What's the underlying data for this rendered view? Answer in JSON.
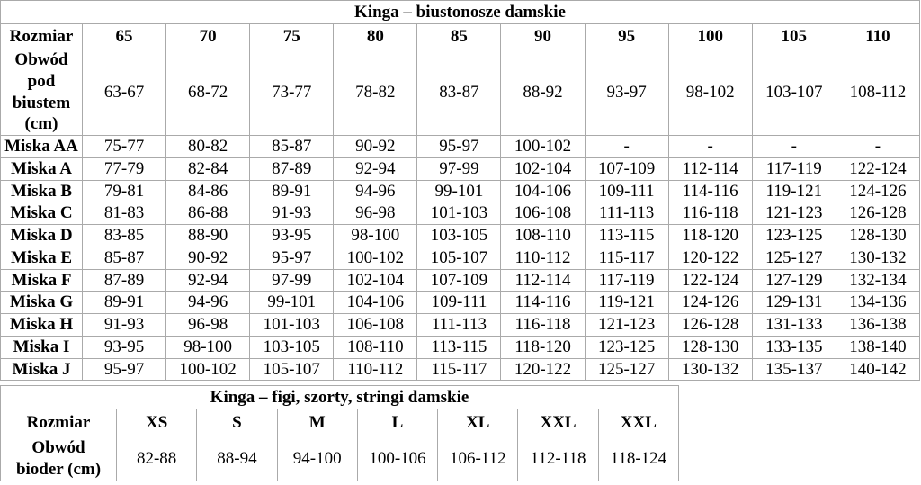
{
  "page": {
    "background_color": "#ffffff",
    "text_color": "#000000",
    "border_color": "#aaaaaa"
  },
  "tables": [
    {
      "id": "bras",
      "title": "Kinga – biustonosze damskie",
      "corner_label": "Rozmiar",
      "columns": [
        "65",
        "70",
        "75",
        "80",
        "85",
        "90",
        "95",
        "100",
        "105",
        "110"
      ],
      "rows": [
        {
          "label": "Obwód\npod\nbiustem\n(cm)",
          "type": "measure",
          "values": [
            "63-67",
            "68-72",
            "73-77",
            "78-82",
            "83-87",
            "88-92",
            "93-97",
            "98-102",
            "103-107",
            "108-112"
          ]
        },
        {
          "label": "Miska AA",
          "type": "data",
          "values": [
            "75-77",
            "80-82",
            "85-87",
            "90-92",
            "95-97",
            "100-102",
            "-",
            "-",
            "-",
            "-"
          ]
        },
        {
          "label": "Miska A",
          "type": "data",
          "values": [
            "77-79",
            "82-84",
            "87-89",
            "92-94",
            "97-99",
            "102-104",
            "107-109",
            "112-114",
            "117-119",
            "122-124"
          ]
        },
        {
          "label": "Miska B",
          "type": "data",
          "values": [
            "79-81",
            "84-86",
            "89-91",
            "94-96",
            "99-101",
            "104-106",
            "109-111",
            "114-116",
            "119-121",
            "124-126"
          ]
        },
        {
          "label": "Miska C",
          "type": "data",
          "values": [
            "81-83",
            "86-88",
            "91-93",
            "96-98",
            "101-103",
            "106-108",
            "111-113",
            "116-118",
            "121-123",
            "126-128"
          ]
        },
        {
          "label": "Miska D",
          "type": "data",
          "values": [
            "83-85",
            "88-90",
            "93-95",
            "98-100",
            "103-105",
            "108-110",
            "113-115",
            "118-120",
            "123-125",
            "128-130"
          ]
        },
        {
          "label": "Miska E",
          "type": "data",
          "values": [
            "85-87",
            "90-92",
            "95-97",
            "100-102",
            "105-107",
            "110-112",
            "115-117",
            "120-122",
            "125-127",
            "130-132"
          ]
        },
        {
          "label": "Miska F",
          "type": "data",
          "values": [
            "87-89",
            "92-94",
            "97-99",
            "102-104",
            "107-109",
            "112-114",
            "117-119",
            "122-124",
            "127-129",
            "132-134"
          ]
        },
        {
          "label": "Miska G",
          "type": "data",
          "values": [
            "89-91",
            "94-96",
            "99-101",
            "104-106",
            "109-111",
            "114-116",
            "119-121",
            "124-126",
            "129-131",
            "134-136"
          ]
        },
        {
          "label": "Miska H",
          "type": "data",
          "values": [
            "91-93",
            "96-98",
            "101-103",
            "106-108",
            "111-113",
            "116-118",
            "121-123",
            "126-128",
            "131-133",
            "136-138"
          ]
        },
        {
          "label": "Miska I",
          "type": "data",
          "values": [
            "93-95",
            "98-100",
            "103-105",
            "108-110",
            "113-115",
            "118-120",
            "123-125",
            "128-130",
            "133-135",
            "138-140"
          ]
        },
        {
          "label": "Miska J",
          "type": "data",
          "values": [
            "95-97",
            "100-102",
            "105-107",
            "110-112",
            "115-117",
            "120-122",
            "125-127",
            "130-132",
            "135-137",
            "140-142"
          ]
        }
      ]
    },
    {
      "id": "panties",
      "title": "Kinga – figi, szorty, stringi damskie",
      "corner_label": "Rozmiar",
      "columns": [
        "XS",
        "S",
        "M",
        "L",
        "XL",
        "XXL",
        "XXL"
      ],
      "rows": [
        {
          "label": "Obwód\nbioder (cm)",
          "type": "measure",
          "values": [
            "82-88",
            "88-94",
            "94-100",
            "100-106",
            "106-112",
            "112-118",
            "118-124"
          ]
        }
      ]
    }
  ]
}
